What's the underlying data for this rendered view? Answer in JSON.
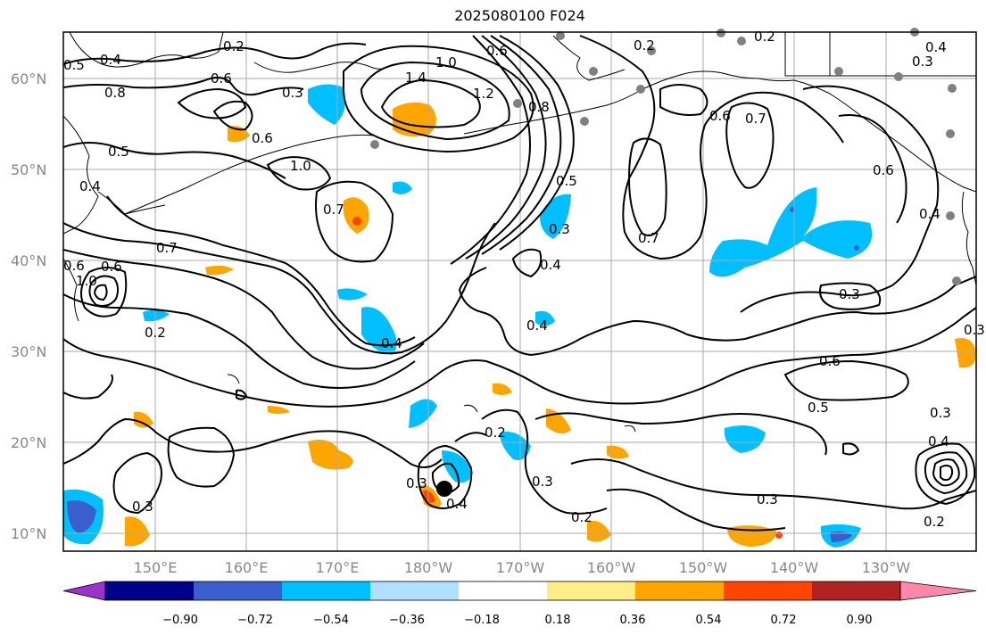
{
  "title": "2025080100 F024",
  "lat_labels": [
    "60°N",
    "50°N",
    "40°N",
    "30°N",
    "20°N",
    "10°N"
  ],
  "lon_labels": [
    "150°E",
    "160°E",
    "170°E",
    "180°W",
    "170°W",
    "160°W",
    "150°W",
    "140°W",
    "130°W"
  ],
  "colorbar": {
    "colors": [
      "#9933cc",
      "#00008b",
      "#3a5fcd",
      "#00bfff",
      "#b0e0ff",
      "#ffffff",
      "#ffed8a",
      "#ffa500",
      "#ff4500",
      "#b22222",
      "#ff88aa"
    ],
    "ticks": [
      "−0.90",
      "−0.72",
      "−0.54",
      "−0.36",
      "−0.18",
      "0.18",
      "0.36",
      "0.54",
      "0.72",
      "0.90"
    ]
  },
  "contour_labels": [
    "0.2",
    "0.4",
    "0.5",
    "0.6",
    "0.8",
    "0.3",
    "0.6",
    "1.4",
    "1.0",
    "0.6",
    "1.2",
    "0.8",
    "0.2",
    "0.2",
    "0.4",
    "0.3",
    "0.5",
    "0.6",
    "0.4",
    "1.0",
    "0.7",
    "0.6",
    "0.7",
    "0.6",
    "0.7",
    "0.6",
    "0.5",
    "0.4",
    "1.0",
    "0.7",
    "0.3",
    "0.3",
    "0.2",
    "0.4",
    "0.4",
    "0.4",
    "0.3",
    "0.6",
    "0.5",
    "0.3",
    "0.4",
    "0.2",
    "0.3",
    "0.4",
    "0.3",
    "0.3",
    "0.2",
    "0.3",
    "0.2"
  ],
  "colors": {
    "frame": "#000000",
    "grid": "#aaaaaa",
    "contour": "#000000",
    "coast": "#000000",
    "station": "#808080"
  }
}
